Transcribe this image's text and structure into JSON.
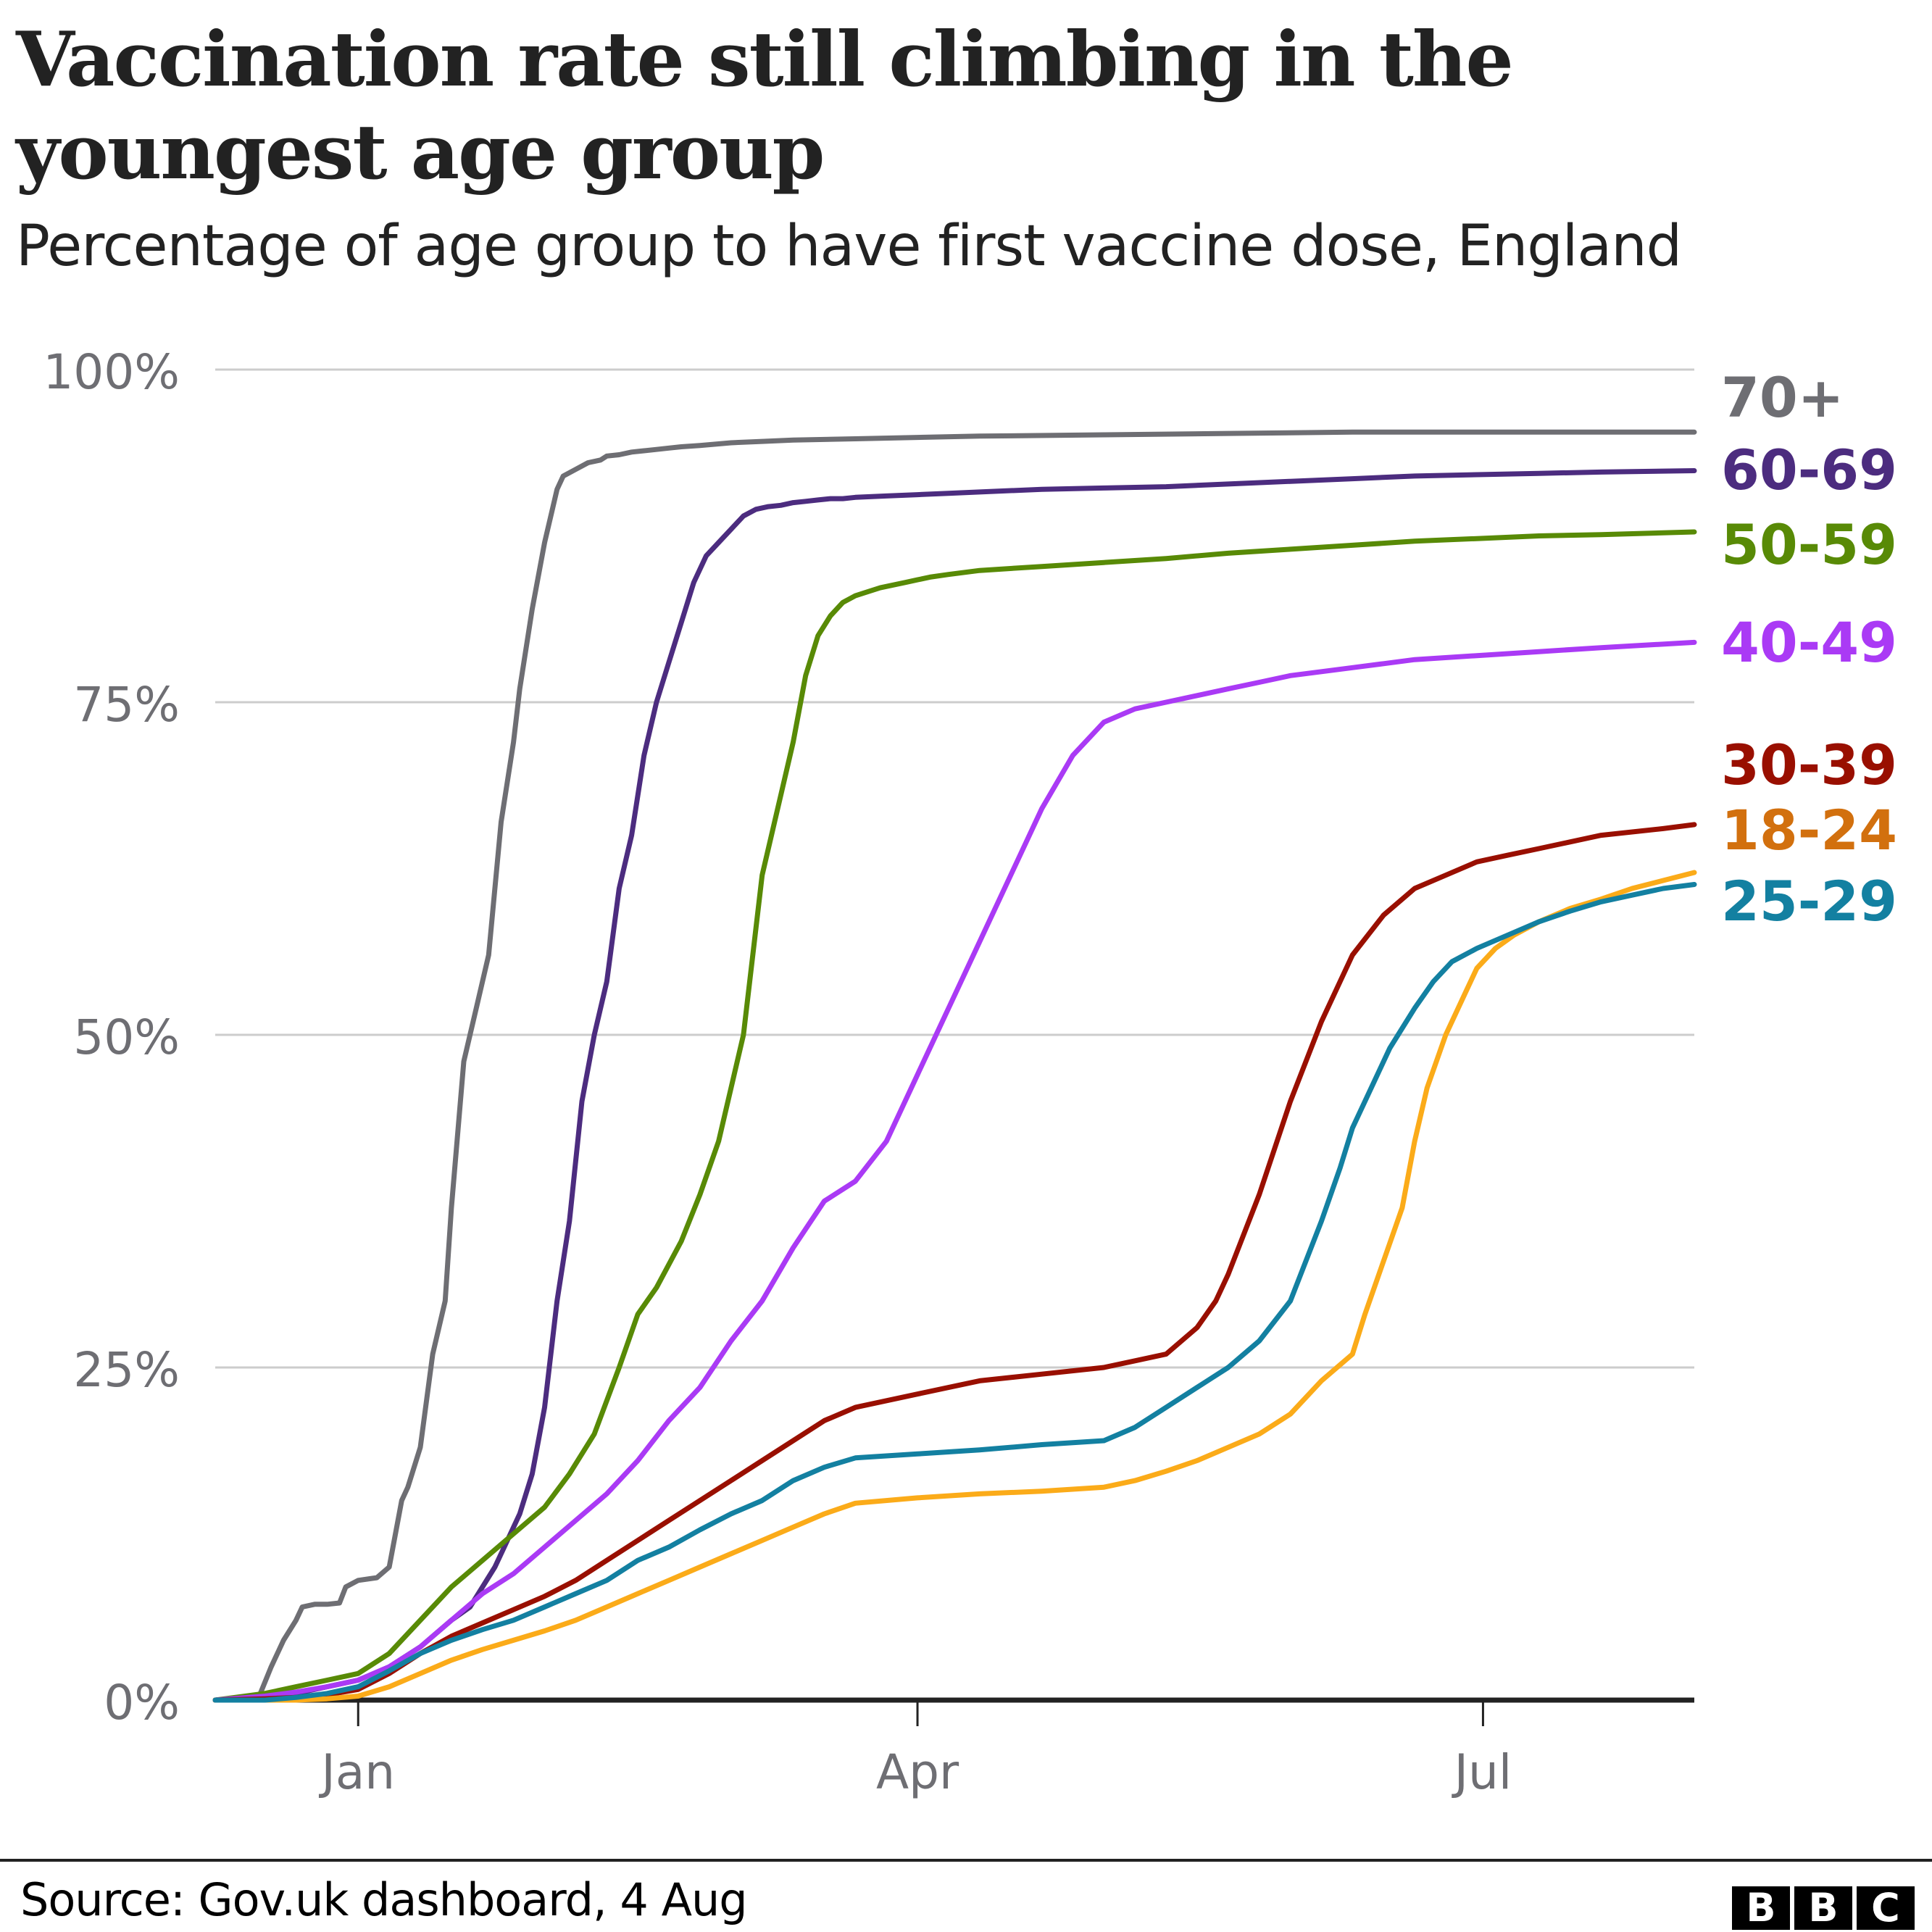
{
  "header": {
    "title": "Vaccination rate still climbing in the youngest age group",
    "subtitle": "Percentage of age group to have first vaccine dose, England"
  },
  "footer": {
    "source": "Source: Gov.uk dashboard, 4 Aug",
    "logo_letters": [
      "B",
      "B",
      "C"
    ]
  },
  "chart_data": {
    "type": "line",
    "title": "Vaccination rate still climbing in the youngest age group",
    "subtitle": "Percentage of age group to have first vaccine dose, England",
    "xlabel": "",
    "ylabel": "",
    "x_units": "days since 1 Jan 2021",
    "xlim": [
      -23,
      215
    ],
    "ylim": [
      0,
      100
    ],
    "grid": true,
    "legend": "direct labels at right end of lines",
    "y_ticks": [
      {
        "value": 0,
        "label": "0%"
      },
      {
        "value": 25,
        "label": "25%"
      },
      {
        "value": 50,
        "label": "50%"
      },
      {
        "value": 75,
        "label": "75%"
      },
      {
        "value": 100,
        "label": "100%"
      }
    ],
    "x_ticks": [
      {
        "value": 0,
        "label": "Jan"
      },
      {
        "value": 90,
        "label": "Apr"
      },
      {
        "value": 181,
        "label": "Jul"
      }
    ],
    "series": [
      {
        "name": "70+",
        "color": "#6e6e73",
        "label_color": "#6e6e73",
        "x": [
          -23,
          -16,
          -14,
          -12,
          -10,
          -9,
          -7,
          -5,
          -3,
          -2,
          0,
          3,
          5,
          7,
          8,
          10,
          12,
          14,
          15,
          17,
          19,
          21,
          23,
          25,
          26,
          28,
          30,
          32,
          33,
          35,
          37,
          39,
          40,
          42,
          44,
          46,
          48,
          50,
          52,
          55,
          60,
          65,
          70,
          80,
          90,
          100,
          120,
          140,
          160,
          180,
          200,
          215
        ],
        "y": [
          0,
          0.2,
          2.5,
          4.5,
          6,
          7,
          7.2,
          7.2,
          7.3,
          8.5,
          9,
          9.2,
          10,
          15,
          16,
          19,
          26,
          30,
          37,
          48,
          52,
          56,
          66,
          72,
          76,
          82,
          87,
          91,
          92,
          92.5,
          93,
          93.2,
          93.5,
          93.6,
          93.8,
          93.9,
          94,
          94.1,
          94.2,
          94.3,
          94.5,
          94.6,
          94.7,
          94.8,
          94.9,
          95,
          95.1,
          95.2,
          95.3,
          95.3,
          95.3,
          95.3
        ]
      },
      {
        "name": "60-69",
        "color": "#4c2c7f",
        "label_color": "#4c2c7f",
        "x": [
          -23,
          -15,
          -10,
          -5,
          0,
          5,
          10,
          15,
          18,
          20,
          22,
          24,
          26,
          28,
          30,
          32,
          34,
          36,
          38,
          40,
          42,
          44,
          46,
          48,
          50,
          52,
          54,
          56,
          58,
          60,
          62,
          64,
          66,
          68,
          70,
          72,
          74,
          76,
          78,
          80,
          85,
          90,
          95,
          100,
          110,
          120,
          130,
          140,
          150,
          160,
          170,
          180,
          190,
          200,
          215
        ],
        "y": [
          0,
          0.2,
          0.5,
          1,
          1.5,
          2.5,
          4,
          6,
          7,
          8.5,
          10,
          12,
          14,
          17,
          22,
          30,
          36,
          45,
          50,
          54,
          61,
          65,
          71,
          75,
          78,
          81,
          84,
          86,
          87,
          88,
          89,
          89.5,
          89.7,
          89.8,
          90,
          90.1,
          90.2,
          90.3,
          90.3,
          90.4,
          90.5,
          90.6,
          90.7,
          90.8,
          91,
          91.1,
          91.2,
          91.4,
          91.6,
          91.8,
          92,
          92.1,
          92.2,
          92.3,
          92.4
        ]
      },
      {
        "name": "50-59",
        "color": "#588a06",
        "label_color": "#588a06",
        "x": [
          -23,
          -15,
          -10,
          -5,
          0,
          5,
          10,
          15,
          20,
          25,
          30,
          34,
          38,
          42,
          45,
          48,
          52,
          55,
          58,
          62,
          65,
          68,
          70,
          72,
          74,
          76,
          78,
          80,
          82,
          84,
          86,
          88,
          90,
          92,
          95,
          100,
          110,
          120,
          130,
          140,
          150,
          160,
          170,
          180,
          190,
          200,
          215
        ],
        "y": [
          0,
          0.5,
          1,
          1.5,
          2,
          3.5,
          6,
          8.5,
          10.5,
          12.5,
          14.5,
          17,
          20,
          25,
          29,
          31,
          34.5,
          38,
          42,
          50,
          62,
          68,
          72,
          77,
          80,
          81.5,
          82.5,
          83,
          83.3,
          83.6,
          83.8,
          84,
          84.2,
          84.4,
          84.6,
          84.9,
          85.2,
          85.5,
          85.8,
          86.2,
          86.5,
          86.8,
          87.1,
          87.3,
          87.5,
          87.6,
          87.8
        ]
      },
      {
        "name": "40-49",
        "color": "#aa3af5",
        "label_color": "#aa3af5",
        "x": [
          -23,
          -15,
          -10,
          -5,
          0,
          5,
          10,
          15,
          20,
          25,
          30,
          35,
          40,
          45,
          50,
          55,
          60,
          65,
          70,
          75,
          80,
          85,
          90,
          95,
          100,
          105,
          110,
          115,
          120,
          125,
          130,
          135,
          140,
          145,
          150,
          155,
          160,
          165,
          170,
          180,
          190,
          200,
          215
        ],
        "y": [
          0,
          0.3,
          0.6,
          1,
          1.5,
          2.5,
          4,
          6,
          8,
          9.5,
          11.5,
          13.5,
          15.5,
          18,
          21,
          23.5,
          27,
          30,
          34,
          37.5,
          39,
          42,
          47,
          52,
          57,
          62,
          67,
          71,
          73.5,
          74.5,
          75,
          75.5,
          76,
          76.5,
          77,
          77.3,
          77.6,
          77.9,
          78.2,
          78.5,
          78.8,
          79.1,
          79.5
        ]
      },
      {
        "name": "30-39",
        "color": "#990f00",
        "label_color": "#990f00",
        "x": [
          -23,
          -15,
          -10,
          -5,
          0,
          5,
          10,
          15,
          20,
          25,
          30,
          35,
          40,
          45,
          50,
          55,
          60,
          65,
          70,
          75,
          80,
          90,
          100,
          110,
          120,
          125,
          130,
          135,
          138,
          140,
          145,
          150,
          155,
          160,
          165,
          170,
          175,
          180,
          185,
          190,
          195,
          200,
          210,
          215
        ],
        "y": [
          0,
          0.1,
          0.2,
          0.4,
          0.8,
          2,
          3.5,
          4.8,
          5.8,
          6.8,
          7.8,
          9,
          10.5,
          12,
          13.5,
          15,
          16.5,
          18,
          19.5,
          21,
          22,
          23,
          24,
          24.5,
          25,
          25.5,
          26,
          28,
          30,
          32,
          38,
          45,
          51,
          56,
          59,
          61,
          62,
          63,
          63.5,
          64,
          64.5,
          65,
          65.5,
          65.8
        ]
      },
      {
        "name": "18-24",
        "color": "#fbab19",
        "label_color": "#d2700e",
        "x": [
          -23,
          -10,
          -5,
          0,
          5,
          10,
          15,
          20,
          25,
          30,
          35,
          40,
          45,
          50,
          55,
          60,
          65,
          70,
          75,
          80,
          90,
          100,
          110,
          120,
          125,
          130,
          135,
          140,
          145,
          150,
          155,
          160,
          162,
          165,
          168,
          170,
          172,
          175,
          178,
          180,
          183,
          186,
          190,
          195,
          200,
          205,
          210,
          215
        ],
        "y": [
          0,
          0,
          0.1,
          0.3,
          1,
          2,
          3,
          3.8,
          4.5,
          5.2,
          6,
          7,
          8,
          9,
          10,
          11,
          12,
          13,
          14,
          14.8,
          15.2,
          15.5,
          15.7,
          16,
          16.5,
          17.2,
          18,
          19,
          20,
          21.5,
          24,
          26,
          29,
          33,
          37,
          42,
          46,
          50,
          53,
          55,
          56.5,
          57.5,
          58.5,
          59.5,
          60.2,
          61,
          61.6,
          62.2
        ]
      },
      {
        "name": "25-29",
        "color": "#1380a1",
        "label_color": "#1380a1",
        "x": [
          -23,
          -15,
          -10,
          -5,
          0,
          5,
          10,
          15,
          20,
          25,
          30,
          35,
          40,
          45,
          50,
          55,
          60,
          65,
          70,
          75,
          80,
          90,
          100,
          110,
          120,
          125,
          130,
          135,
          140,
          145,
          150,
          155,
          158,
          160,
          163,
          166,
          170,
          173,
          176,
          180,
          185,
          190,
          195,
          200,
          205,
          210,
          215
        ],
        "y": [
          0,
          0,
          0.2,
          0.5,
          1,
          2.2,
          3.5,
          4.5,
          5.3,
          6,
          7,
          8,
          9,
          10.5,
          11.5,
          12.8,
          14,
          15,
          16.5,
          17.5,
          18.2,
          18.5,
          18.8,
          19.2,
          19.5,
          20.5,
          22,
          23.5,
          25,
          27,
          30,
          36,
          40,
          43,
          46,
          49,
          52,
          54,
          55.5,
          56.5,
          57.5,
          58.5,
          59.3,
          60,
          60.5,
          61,
          61.3
        ]
      }
    ]
  }
}
